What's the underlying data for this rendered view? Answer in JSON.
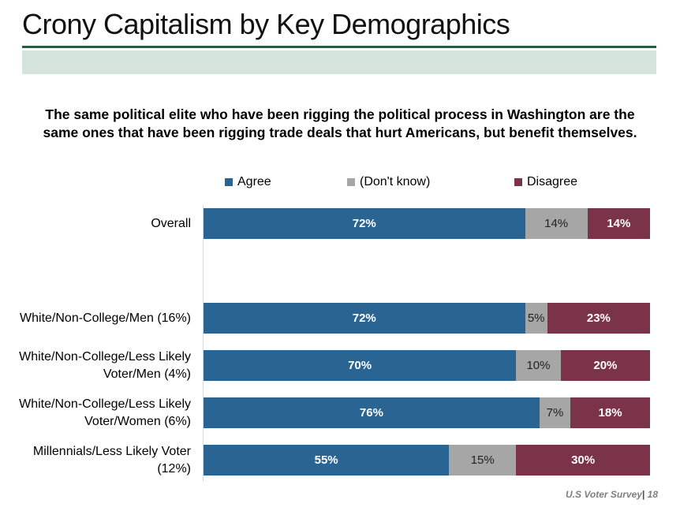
{
  "header": {
    "title": "Crony Capitalism by Key Demographics"
  },
  "footer": {
    "source": "U.S Voter Survey",
    "separator": "|",
    "page": "18"
  },
  "colors": {
    "agree": "#2a6493",
    "dont_know": "#a6a6a6",
    "disagree": "#7b3349",
    "rule": "#2f5a3c",
    "band": "#d5e3dd"
  },
  "chart_data": {
    "type": "bar",
    "orientation": "horizontal",
    "stacked": true,
    "title": "The same political elite who have been rigging the political process in Washington are the same ones that have been rigging trade deals that hurt Americans, but benefit themselves.",
    "legend_position": "top",
    "categories": [
      "Overall",
      "White/Non-College/Men (16%)",
      "White/Non-College/Less Likely Voter/Men (4%)",
      "White/Non-College/Less Likely Voter/Women (6%)",
      "Millennials/Less Likely Voter (12%)"
    ],
    "series": [
      {
        "name": "Agree",
        "values": [
          72,
          72,
          70,
          76,
          55
        ]
      },
      {
        "name": "(Don't know)",
        "values": [
          14,
          5,
          10,
          7,
          15
        ]
      },
      {
        "name": "Disagree",
        "values": [
          14,
          23,
          20,
          18,
          30
        ]
      }
    ],
    "data_labels": [
      [
        "72%",
        "14%",
        "14%"
      ],
      [
        "72%",
        "5%",
        "23%"
      ],
      [
        "70%",
        "10%",
        "20%"
      ],
      [
        "76%",
        "7%",
        "18%"
      ],
      [
        "55%",
        "15%",
        "30%"
      ]
    ],
    "xlim": [
      0,
      100
    ]
  }
}
